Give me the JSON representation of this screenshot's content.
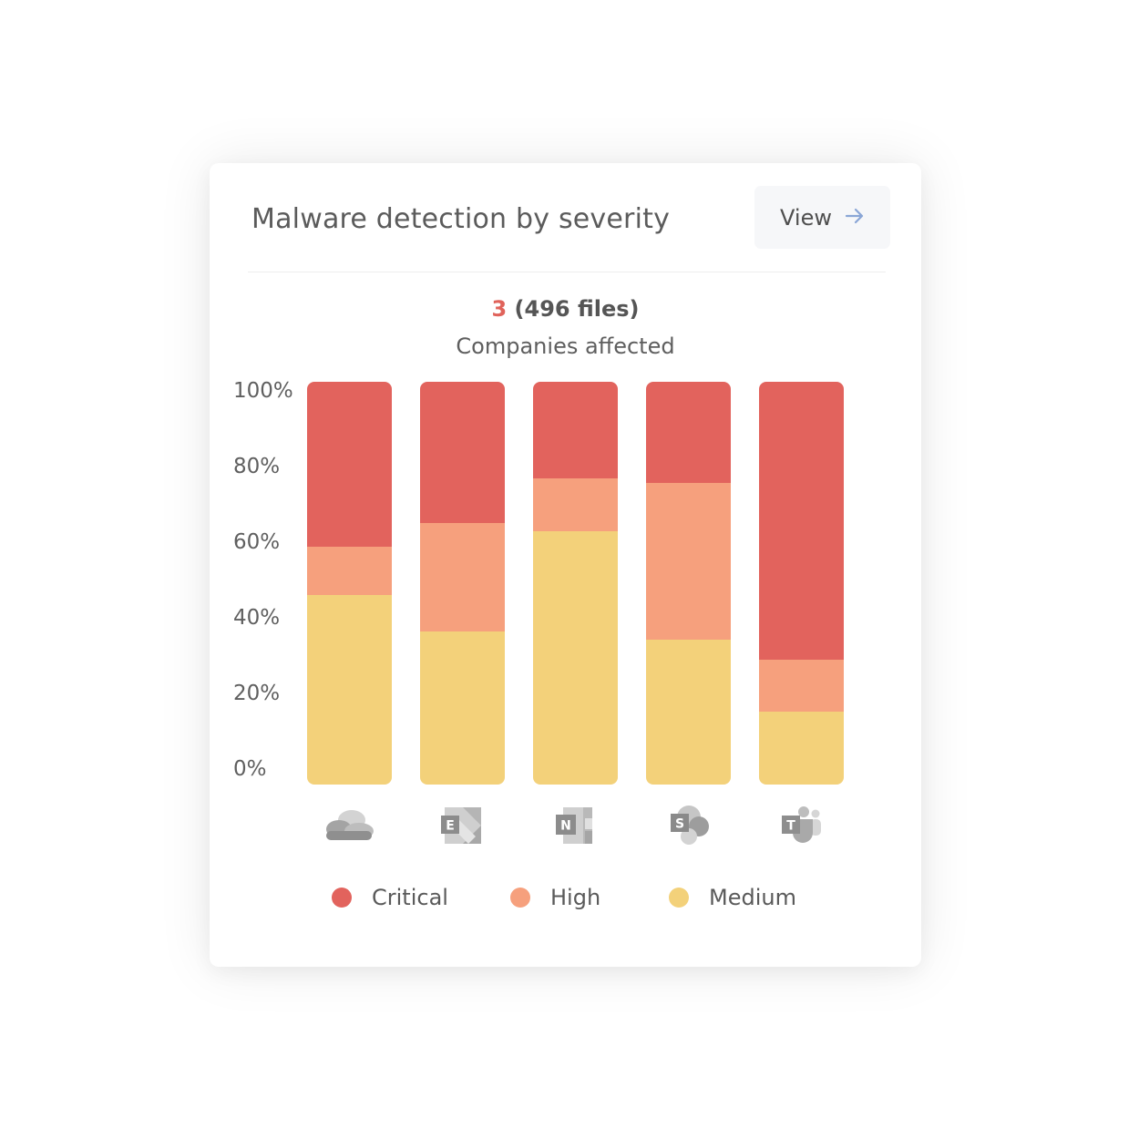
{
  "card": {
    "title": "Malware detection by severity",
    "view_button": {
      "label": "View",
      "icon": "arrow-right-icon"
    },
    "summary": {
      "count": "3",
      "files": "(496 files)",
      "label": "Companies affected"
    }
  },
  "chart_data": {
    "type": "bar",
    "stacked": true,
    "categories": [
      "OneDrive",
      "Exchange",
      "OneNote",
      "SharePoint",
      "Teams"
    ],
    "category_icons": [
      "onedrive-icon",
      "exchange-icon",
      "onenote-icon",
      "sharepoint-icon",
      "teams-icon"
    ],
    "series": [
      {
        "name": "Medium",
        "color": "#f3d17a",
        "values": [
          47,
          38,
          63,
          36,
          18
        ]
      },
      {
        "name": "High",
        "color": "#f6a07d",
        "values": [
          12,
          27,
          13,
          39,
          13
        ]
      },
      {
        "name": "Critical",
        "color": "#e2635d",
        "values": [
          41,
          35,
          24,
          25,
          69
        ]
      }
    ],
    "legend_order": [
      "Critical",
      "High",
      "Medium"
    ],
    "ylim": [
      0,
      100
    ],
    "yticks": [
      "100%",
      "80%",
      "60%",
      "40%",
      "20%",
      "0%"
    ],
    "grid": false,
    "legend_position": "bottom"
  }
}
